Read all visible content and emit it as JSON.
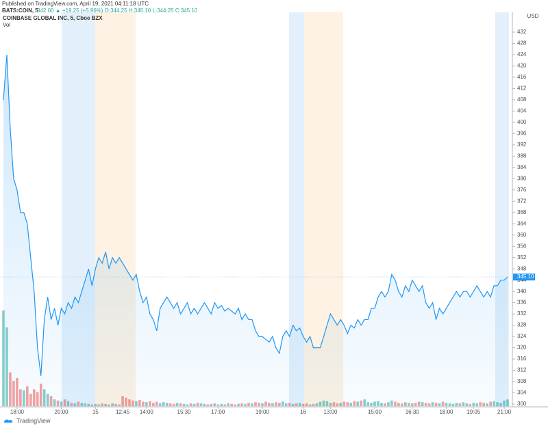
{
  "header": {
    "published": "Published on TradingView.com, April 19, 2021 04:11:18 UTC",
    "symbol": "BATS:COIN, 5",
    "quote": "342.00 ▲ +19.25 (+5.96%) O:344.25 H:345.10 L:344.25 C:345.10",
    "name": "COINBASE GLOBAL INC, 5, Cboe BZX",
    "volume_label": "Vol"
  },
  "chart_data": {
    "type": "area",
    "ylabel": "USD",
    "ylim": [
      300,
      432
    ],
    "yticks": [
      300,
      304,
      308,
      312,
      316,
      320,
      324,
      328,
      332,
      336,
      340,
      344,
      348,
      352,
      356,
      360,
      364,
      368,
      372,
      376,
      380,
      384,
      388,
      392,
      396,
      400,
      404,
      408,
      412,
      416,
      420,
      424,
      428,
      432
    ],
    "xlim": [
      0,
      148
    ],
    "xticks": [
      {
        "value": 4,
        "label": "18:00"
      },
      {
        "value": 17,
        "label": "20:00"
      },
      {
        "value": 27,
        "label": "15"
      },
      {
        "value": 35,
        "label": "12:45"
      },
      {
        "value": 42,
        "label": "14:00"
      },
      {
        "value": 53,
        "label": "15:30"
      },
      {
        "value": 63,
        "label": "17:00"
      },
      {
        "value": 76,
        "label": "19:00"
      },
      {
        "value": 88,
        "label": "16"
      },
      {
        "value": 96,
        "label": "13:00"
      },
      {
        "value": 109,
        "label": "15:00"
      },
      {
        "value": 120,
        "label": "16:30"
      },
      {
        "value": 130,
        "label": "18:00"
      },
      {
        "value": 138,
        "label": "19:05"
      },
      {
        "value": 147,
        "label": "21:00"
      }
    ],
    "color": "#2196f3",
    "values": [
      408,
      424,
      398,
      380,
      376,
      368,
      368,
      364,
      352,
      340,
      320,
      310,
      330,
      338,
      330,
      334,
      328,
      334,
      332,
      336,
      334,
      338,
      336,
      340,
      344,
      348,
      342,
      348,
      352,
      350,
      354,
      348,
      352,
      350,
      352,
      350,
      348,
      346,
      344,
      346,
      340,
      336,
      338,
      332,
      330,
      326,
      334,
      336,
      338,
      336,
      334,
      336,
      332,
      334,
      336,
      332,
      334,
      332,
      334,
      336,
      334,
      332,
      336,
      334,
      335,
      333,
      334,
      333,
      332,
      334,
      330,
      332,
      330,
      330,
      326,
      324,
      324,
      323,
      322,
      324,
      320,
      318,
      324,
      326,
      324,
      328,
      326,
      327,
      324,
      322,
      324,
      320,
      320,
      320,
      324,
      328,
      332,
      330,
      328,
      330,
      328,
      325,
      328,
      327,
      330,
      328,
      330,
      330,
      334,
      334,
      338,
      340,
      338,
      340,
      346,
      344,
      340,
      338,
      342,
      340,
      344,
      342,
      340,
      342,
      336,
      334,
      336,
      330,
      334,
      332,
      334,
      336,
      338,
      340,
      338,
      340,
      340,
      338,
      340,
      342,
      340,
      338,
      340,
      338,
      342,
      342,
      344,
      344,
      345.1
    ],
    "volume": [
      170,
      140,
      60,
      45,
      50,
      30,
      28,
      35,
      22,
      30,
      25,
      40,
      30,
      22,
      18,
      12,
      10,
      8,
      12,
      9,
      6,
      5,
      8,
      6,
      5,
      4,
      3,
      4,
      3,
      5,
      4,
      3,
      5,
      4,
      3,
      18,
      15,
      12,
      10,
      9,
      11,
      8,
      7,
      9,
      6,
      8,
      5,
      7,
      6,
      5,
      4,
      6,
      5,
      4,
      3,
      5,
      4,
      6,
      5,
      4,
      3,
      4,
      5,
      3,
      4,
      3,
      5,
      4,
      3,
      4,
      5,
      4,
      6,
      5,
      7,
      6,
      5,
      8,
      6,
      5,
      7,
      6,
      8,
      5,
      6,
      4,
      5,
      6,
      4,
      5,
      3,
      4,
      5,
      8,
      10,
      9,
      6,
      7,
      5,
      6,
      8,
      7,
      6,
      9,
      8,
      10,
      12,
      7,
      6,
      8,
      9,
      6,
      5,
      7,
      10,
      8,
      6,
      5,
      7,
      6,
      5,
      6,
      8,
      7,
      6,
      5,
      7,
      6,
      5,
      8,
      6,
      5,
      4,
      6,
      5,
      7,
      5,
      4,
      6,
      5,
      7,
      6,
      5,
      8,
      9,
      7,
      6,
      10,
      12
    ],
    "up_color": "#26a69a",
    "down_color": "#ef5350",
    "last_value_label": "345.10"
  },
  "footer": {
    "brand": "TradingView"
  }
}
